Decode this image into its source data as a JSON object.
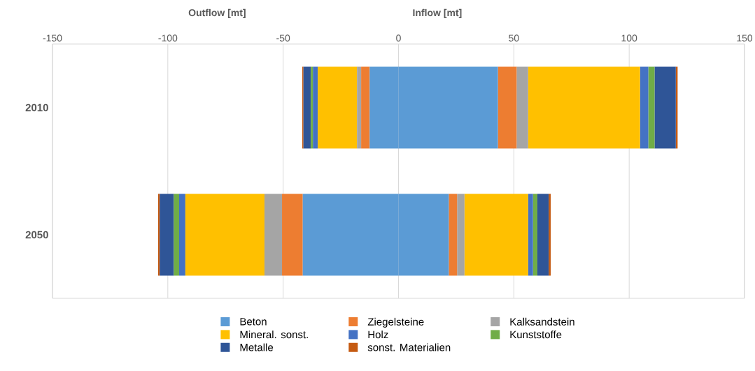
{
  "chart_data": {
    "type": "bar",
    "orientation": "horizontal",
    "stacked": true,
    "categories": [
      "2010",
      "2050"
    ],
    "annotations": [
      "Outflow [mt]",
      "Inflow [mt]"
    ],
    "series": [
      {
        "name": "Beton",
        "color": "#5b9bd5",
        "values": [
          43.1,
          21.8
        ]
      },
      {
        "name": "Ziegelsteine",
        "color": "#ed7d31",
        "values": [
          8.1,
          3.6
        ]
      },
      {
        "name": "Kalksandstein",
        "color": "#a5a5a5",
        "values": [
          5.0,
          3.2
        ]
      },
      {
        "name": "Mineral. sonst.",
        "color": "#ffc000",
        "values": [
          48.5,
          27.6
        ]
      },
      {
        "name": "Holz",
        "color": "#4472c4",
        "values": [
          3.6,
          2.1
        ]
      },
      {
        "name": "Kunststoffe",
        "color": "#70ad47",
        "values": [
          2.7,
          1.9
        ]
      },
      {
        "name": "Metalle",
        "color": "#2f5597",
        "values": [
          9.2,
          4.9
        ]
      },
      {
        "name": "sonst. Materialien",
        "color": "#c55a11",
        "values": [
          0.8,
          0.9
        ]
      },
      {
        "color": "#5b9bd5",
        "values": [
          -12.5,
          -41.5
        ]
      },
      {
        "color": "#ed7d31",
        "values": [
          -3.7,
          -9.0
        ]
      },
      {
        "color": "#a5a5a5",
        "values": [
          -1.8,
          -7.6
        ]
      },
      {
        "color": "#ffc000",
        "values": [
          -17.0,
          -34.3
        ]
      },
      {
        "color": "#4472c4",
        "values": [
          -2.1,
          -2.7
        ]
      },
      {
        "color": "#70ad47",
        "values": [
          -0.9,
          -2.3
        ]
      },
      {
        "color": "#2f5597",
        "values": [
          -3.2,
          -6.1
        ]
      },
      {
        "color": "#c55a11",
        "values": [
          -0.5,
          -0.7
        ]
      }
    ],
    "xlim": [
      -150,
      150
    ],
    "xticks": [
      -150,
      -100,
      -50,
      0,
      50,
      100,
      150
    ],
    "grid": "x",
    "legend": "bottom"
  }
}
